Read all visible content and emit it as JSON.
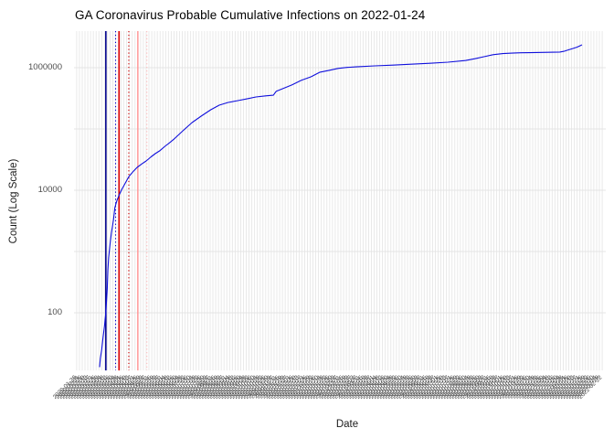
{
  "title": "GA Coronavirus Probable Cumulative Infections on 2022-01-24",
  "chart_data": {
    "type": "line",
    "title": "GA Coronavirus Probable Cumulative Infections on 2022-01-24",
    "xlabel": "Date",
    "ylabel": "Count (Log Scale)",
    "y_scale": "log10",
    "ylim": [
      20,
      3500000
    ],
    "grid": "on",
    "grid_color": "#e4e4e4",
    "x_range": [
      "2020-03-01",
      "2022-01-24"
    ],
    "y_ticks": [
      {
        "value": 100,
        "label": "100"
      },
      {
        "value": 10000,
        "label": "10000"
      },
      {
        "value": 1000000,
        "label": "1000000"
      }
    ],
    "y_gridlines": [
      100,
      1000,
      10000,
      100000,
      1000000
    ],
    "x_ticks": {
      "start_date": "2020-01-28",
      "end_date": "2022-02-24",
      "interval_days": 4,
      "format": "YYYY-MM-DD",
      "angle_degrees": 45,
      "note": "dense overlapping rotated date labels"
    },
    "series": [
      {
        "name": "probable-cumulative-infections",
        "color": "#0f0fdc",
        "points": [
          [
            "2020-03-01",
            13
          ],
          [
            "2020-03-02",
            18
          ],
          [
            "2020-03-04",
            25
          ],
          [
            "2020-03-06",
            40
          ],
          [
            "2020-03-08",
            60
          ],
          [
            "2020-03-10",
            100
          ],
          [
            "2020-03-12",
            250
          ],
          [
            "2020-03-13",
            500
          ],
          [
            "2020-03-14",
            800
          ],
          [
            "2020-03-16",
            1300
          ],
          [
            "2020-03-18",
            2000
          ],
          [
            "2020-03-21",
            3300
          ],
          [
            "2020-03-23",
            5200
          ],
          [
            "2020-03-26",
            6800
          ],
          [
            "2020-03-29",
            8300
          ],
          [
            "2020-04-02",
            10300
          ],
          [
            "2020-04-06",
            12500
          ],
          [
            "2020-04-12",
            16700
          ],
          [
            "2020-04-18",
            20000
          ],
          [
            "2020-04-24",
            23600
          ],
          [
            "2020-05-01",
            27000
          ],
          [
            "2020-05-07",
            30000
          ],
          [
            "2020-05-14",
            35000
          ],
          [
            "2020-05-20",
            39600
          ],
          [
            "2020-05-27",
            44500
          ],
          [
            "2020-06-03",
            52000
          ],
          [
            "2020-06-10",
            60000
          ],
          [
            "2020-06-17",
            70000
          ],
          [
            "2020-06-29",
            93800
          ],
          [
            "2020-07-12",
            127000
          ],
          [
            "2020-07-25",
            162000
          ],
          [
            "2020-08-08",
            206000
          ],
          [
            "2020-08-20",
            244000
          ],
          [
            "2020-09-02",
            271000
          ],
          [
            "2020-09-16",
            290000
          ],
          [
            "2020-09-29",
            310000
          ],
          [
            "2020-10-12",
            333000
          ],
          [
            "2020-10-26",
            347000
          ],
          [
            "2020-11-06",
            356000
          ],
          [
            "2020-11-10",
            410000
          ],
          [
            "2020-11-20",
            456000
          ],
          [
            "2020-12-03",
            524000
          ],
          [
            "2020-12-16",
            620000
          ],
          [
            "2020-12-30",
            710000
          ],
          [
            "2021-01-12",
            845000
          ],
          [
            "2021-01-25",
            905000
          ],
          [
            "2021-02-07",
            972000
          ],
          [
            "2021-02-20",
            1010000
          ],
          [
            "2021-03-05",
            1030000
          ],
          [
            "2021-04-01",
            1070000
          ],
          [
            "2021-04-27",
            1100000
          ],
          [
            "2021-05-23",
            1140000
          ],
          [
            "2021-06-19",
            1180000
          ],
          [
            "2021-07-15",
            1230000
          ],
          [
            "2021-08-10",
            1310000
          ],
          [
            "2021-08-23",
            1400000
          ],
          [
            "2021-09-05",
            1510000
          ],
          [
            "2021-09-18",
            1630000
          ],
          [
            "2021-10-02",
            1700000
          ],
          [
            "2021-10-15",
            1730000
          ],
          [
            "2021-10-28",
            1750000
          ],
          [
            "2021-11-10",
            1760000
          ],
          [
            "2021-12-06",
            1780000
          ],
          [
            "2021-12-23",
            1800000
          ],
          [
            "2021-12-29",
            1850000
          ],
          [
            "2022-01-04",
            1950000
          ],
          [
            "2022-01-11",
            2060000
          ],
          [
            "2022-01-17",
            2170000
          ],
          [
            "2022-01-24",
            2360000
          ]
        ]
      }
    ],
    "vlines": [
      {
        "date": "2020-03-10",
        "color": "#00008b",
        "style": "solid"
      },
      {
        "date": "2020-03-24",
        "color": "#0000cd",
        "style": "dotted"
      },
      {
        "date": "2020-03-29",
        "color": "#dd0000",
        "style": "solid"
      },
      {
        "date": "2020-04-12",
        "color": "#cc0000",
        "style": "dotted"
      },
      {
        "date": "2020-04-25",
        "color": "#ff9e9e",
        "style": "solid"
      },
      {
        "date": "2020-05-08",
        "color": "#ffbdbd",
        "style": "dotted"
      }
    ],
    "legend": "none"
  }
}
